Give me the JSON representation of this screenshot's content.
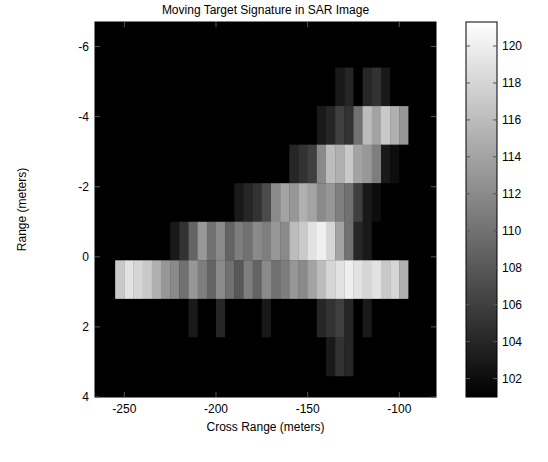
{
  "chart_data": {
    "type": "heatmap",
    "title": "Moving Target Signature in SAR Image",
    "x_label": "Cross Range (meters)",
    "y_label": "Range (meters)",
    "color": "gray",
    "xlim": [
      -266,
      -80
    ],
    "xticks": [
      -250,
      -200,
      -150,
      -100
    ],
    "ylim": [
      -6.7,
      4
    ],
    "yticks": [
      -6,
      -4,
      -2,
      0,
      2,
      4
    ],
    "x_bins": [
      -265,
      -260,
      -255,
      -250,
      -245,
      -240,
      -235,
      -230,
      -225,
      -220,
      -215,
      -210,
      -205,
      -200,
      -195,
      -190,
      -185,
      -180,
      -175,
      -170,
      -165,
      -160,
      -155,
      -150,
      -145,
      -140,
      -135,
      -130,
      -125,
      -120,
      -115,
      -110,
      -105,
      -100,
      -95,
      -90,
      -85,
      -80
    ],
    "y_bins": [
      -5.4,
      -4.3,
      -3.2,
      -2.1,
      -1.0,
      0.1,
      1.2,
      2.3,
      3.4
    ],
    "cells": [
      [
        101,
        101,
        101,
        101,
        101,
        101,
        101,
        101,
        101,
        101,
        101,
        101,
        101,
        101,
        101,
        101,
        101,
        101,
        101,
        101,
        101,
        101,
        101,
        101,
        101,
        101,
        103,
        104,
        101,
        104,
        105,
        103,
        101,
        101,
        101,
        101,
        101
      ],
      [
        101,
        101,
        101,
        101,
        101,
        101,
        101,
        101,
        101,
        101,
        101,
        101,
        101,
        101,
        101,
        101,
        101,
        101,
        101,
        101,
        101,
        101,
        101,
        101,
        103,
        104,
        106,
        105,
        110,
        116,
        114,
        117,
        115,
        113,
        101,
        101,
        101
      ],
      [
        101,
        101,
        101,
        101,
        101,
        101,
        101,
        101,
        101,
        101,
        101,
        101,
        101,
        101,
        101,
        101,
        101,
        101,
        101,
        101,
        101,
        104,
        105,
        106,
        112,
        116,
        115,
        117,
        114,
        113,
        111,
        103,
        102,
        101,
        101,
        101,
        101
      ],
      [
        101,
        101,
        101,
        101,
        101,
        101,
        101,
        101,
        101,
        101,
        101,
        101,
        101,
        101,
        101,
        103,
        104,
        105,
        107,
        112,
        114,
        113,
        115,
        114,
        112,
        113,
        111,
        110,
        106,
        103,
        102,
        101,
        101,
        101,
        101,
        101,
        101
      ],
      [
        101,
        101,
        101,
        101,
        101,
        101,
        101,
        101,
        103,
        105,
        109,
        113,
        110,
        112,
        109,
        111,
        110,
        112,
        111,
        113,
        112,
        116,
        117,
        119,
        120,
        118,
        114,
        110,
        104,
        103,
        101,
        101,
        101,
        101,
        101,
        101,
        101
      ],
      [
        101,
        101,
        117,
        119,
        118,
        117,
        115,
        113,
        112,
        110,
        113,
        111,
        109,
        112,
        110,
        108,
        111,
        109,
        112,
        110,
        111,
        113,
        112,
        114,
        116,
        118,
        119,
        120,
        119,
        118,
        119,
        117,
        118,
        115,
        101,
        101,
        101
      ],
      [
        101,
        101,
        101,
        101,
        101,
        101,
        101,
        101,
        101,
        101,
        103,
        101,
        101,
        104,
        101,
        101,
        101,
        101,
        103,
        101,
        101,
        101,
        101,
        101,
        104,
        105,
        106,
        104,
        101,
        103,
        101,
        101,
        101,
        101,
        101,
        101,
        101
      ],
      [
        101,
        101,
        101,
        101,
        101,
        101,
        101,
        101,
        101,
        101,
        101,
        101,
        101,
        101,
        101,
        101,
        101,
        101,
        101,
        101,
        101,
        101,
        101,
        101,
        101,
        103,
        105,
        104,
        101,
        101,
        101,
        101,
        101,
        101,
        101,
        101,
        101
      ]
    ],
    "colorbar_range": [
      101,
      121.3
    ],
    "colorbar_ticks": [
      102,
      104,
      106,
      108,
      110,
      112,
      114,
      116,
      118,
      120
    ]
  }
}
